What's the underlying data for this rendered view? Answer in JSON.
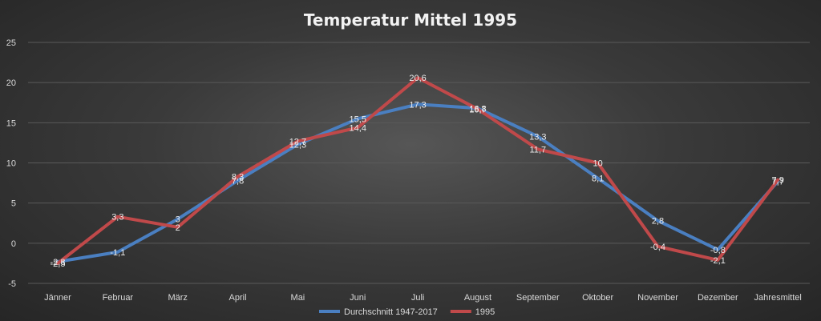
{
  "chart_data": {
    "type": "line",
    "title": "Temperatur Mittel 1995",
    "categories": [
      "Jänner",
      "Februar",
      "März",
      "April",
      "Mai",
      "Juni",
      "Juli",
      "August",
      "September",
      "Oktober",
      "November",
      "Dezember",
      "Jahresmittel"
    ],
    "ylim": [
      -5,
      25
    ],
    "yticks": [
      "-5",
      "0",
      "5",
      "10",
      "15",
      "20",
      "25"
    ],
    "grid": true,
    "legend_position": "bottom",
    "series": [
      {
        "name": "Durchschnitt 1947-2017",
        "color": "#4a7fc1",
        "values": [
          -2.3,
          -1.1,
          3,
          7.8,
          12.3,
          15.5,
          17.3,
          16.8,
          13.3,
          8.1,
          2.8,
          -0.8,
          7.7
        ],
        "labels": [
          "-2,3",
          "-1,1",
          "3",
          "7,8",
          "12,3",
          "15,5",
          "17,3",
          "16,8",
          "13,3",
          "8,1",
          "2,8",
          "-0,8",
          "7,7"
        ]
      },
      {
        "name": "1995",
        "color": "#c0494a",
        "values": [
          -2.5,
          3.3,
          2,
          8.3,
          12.7,
          14.4,
          20.6,
          16.7,
          11.7,
          10,
          -0.4,
          -2.1,
          7.9
        ],
        "labels": [
          "-2,5",
          "3,3",
          "2",
          "8,3",
          "12,7",
          "14,4",
          "20,6",
          "16,7",
          "11,7",
          "10",
          "-0,4",
          "-2,1",
          "7,9"
        ]
      }
    ]
  }
}
